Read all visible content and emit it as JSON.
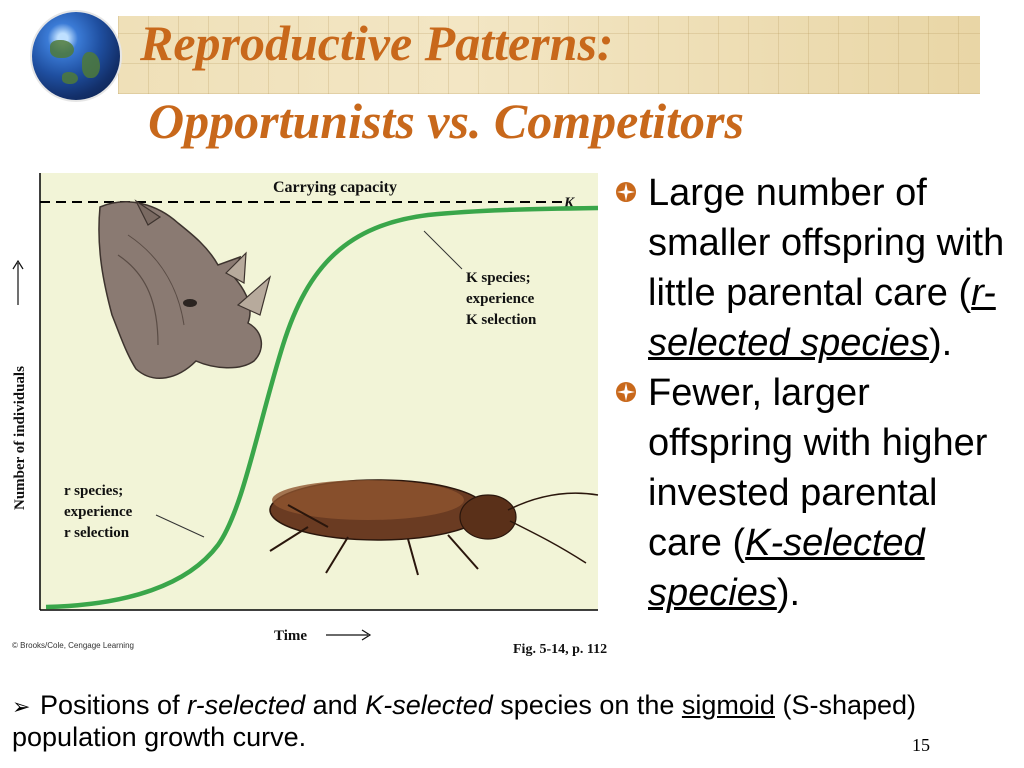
{
  "title": {
    "line1": "Reproductive Patterns:",
    "line2": "Opportunists vs. Competitors"
  },
  "figure": {
    "carrying_capacity_label": "Carrying capacity",
    "k_marker": "K",
    "k_note": [
      "K species;",
      "experience",
      "K selection"
    ],
    "r_note": [
      "r species;",
      "experience",
      "r selection"
    ],
    "y_axis_label": "Number of individuals",
    "x_axis_label": "Time",
    "credit": "© Brooks/Cole, Cengage Learning",
    "fig_ref": "Fig. 5-14, p. 112",
    "curve_color": "#3aa64a",
    "plot_background": "#f2f4d7"
  },
  "bullets": [
    {
      "pre": "Large number of smaller offspring with little parental care (",
      "emph": "r-selected species",
      "post": ")."
    },
    {
      "pre": "Fewer, larger offspring with higher invested parental care (",
      "emph": "K-selected species",
      "post": ")."
    }
  ],
  "caption": {
    "t1": "Positions of ",
    "e1": "r-selected",
    "t2": " and ",
    "e2": "K-selected",
    "t3": " species on the ",
    "u1": "sigmoid",
    "t4": " (S-shaped) population growth curve."
  },
  "slide_number": "15",
  "colors": {
    "title": "#c8681b",
    "bullet_icon": "#c8681b"
  }
}
